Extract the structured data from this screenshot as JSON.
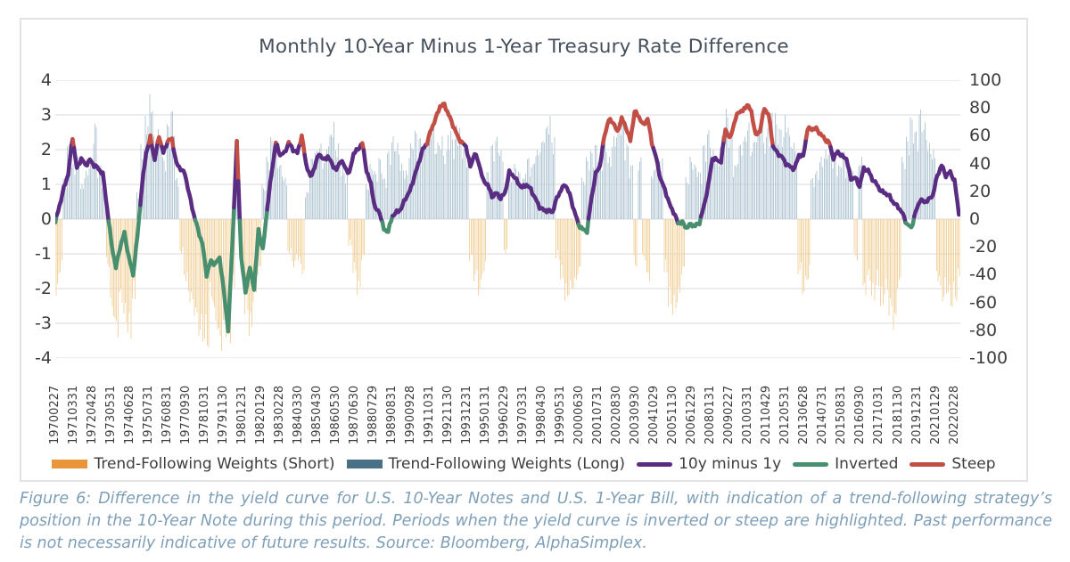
{
  "title": "Monthly 10-Year Minus 1-Year Treasury Rate Difference",
  "caption": "Figure 6: Difference in the yield curve for U.S. 10-Year Notes and U.S. 1-Year Bill, with indication of a trend-following strategy’s position in the 10-Year Note during this period. Periods when the yield curve is inverted or steep are highlighted. Past performance is not necessarily indicative of future results. Source: Bloomberg, AlphaSimplex.",
  "legend": [
    {
      "label": "Trend-Following Weights (Short)",
      "color": "#e8953b",
      "swatch": "bar"
    },
    {
      "label": "Trend-Following Weights (Long)",
      "color": "#4a7085",
      "swatch": "bar"
    },
    {
      "label": "10y minus 1y",
      "color": "#5b2d82",
      "swatch": "line"
    },
    {
      "label": "Inverted",
      "color": "#478f6e",
      "swatch": "line"
    },
    {
      "label": "Steep",
      "color": "#c24f46",
      "swatch": "line"
    }
  ],
  "colors": {
    "line": "#5b2d82",
    "inverted": "#478f6e",
    "steep": "#c24f46",
    "bar_long": "#b7cbd7",
    "bar_short": "#f3d4a6",
    "grid": "#d9d9d9",
    "axis_text": "#3d3d3d",
    "title_text": "#44505c",
    "caption_text": "#7e9fb7",
    "panel_border": "#e3e3e3"
  },
  "chart_data": {
    "type": "line+bar",
    "title": "Monthly 10-Year Minus 1-Year Treasury Rate Difference",
    "grid": "horizontal",
    "legend_position": "bottom",
    "x_start_month": "1970-02",
    "n_months": 628,
    "x_tick_every_months": 13,
    "x_tick_labels": [
      "19700227",
      "19710331",
      "19720428",
      "19730531",
      "19740628",
      "19750731",
      "19760831",
      "19770930",
      "19781031",
      "19791130",
      "19801231",
      "19820129",
      "19830228",
      "19840330",
      "19850430",
      "19860530",
      "19870630",
      "19880729",
      "19890831",
      "19900928",
      "19911031",
      "19921130",
      "19931231",
      "19950131",
      "19960229",
      "19970331",
      "19980430",
      "19990531",
      "20000630",
      "20010731",
      "20020830",
      "20030930",
      "20041029",
      "20051130",
      "20061229",
      "20080131",
      "20090227",
      "20100331",
      "20110429",
      "20120531",
      "20130628",
      "20140731",
      "20150831",
      "20160930",
      "20171031",
      "20181130",
      "20191231",
      "20210129",
      "20220228"
    ],
    "left_axis": {
      "ticks": [
        4,
        3,
        2,
        1,
        0,
        -1,
        -2,
        -3,
        -4
      ],
      "range": [
        -4,
        4
      ]
    },
    "right_axis": {
      "ticks": [
        100,
        80,
        60,
        40,
        20,
        0,
        -20,
        -40,
        -60,
        -80,
        -100
      ],
      "range": [
        -100,
        100
      ]
    },
    "series": [
      {
        "name": "10y minus 1y",
        "type": "line",
        "axis": "left",
        "sampling": "quarterly",
        "highlight_rules": {
          "inverted_below": 0,
          "steep_above": 2.15
        },
        "values": [
          -0.1,
          0.4,
          0.9,
          1.3,
          2.35,
          1.45,
          1.75,
          1.55,
          1.7,
          1.55,
          1.45,
          1.3,
          0.3,
          -0.7,
          -1.4,
          -0.8,
          -0.4,
          -1.1,
          -1.6,
          -0.5,
          0.9,
          1.9,
          2.35,
          1.7,
          2.4,
          1.9,
          2.25,
          2.3,
          1.6,
          1.45,
          1.3,
          0.7,
          0.15,
          -0.3,
          -0.7,
          -1.6,
          -1.2,
          -1.3,
          -1.1,
          -2.1,
          -3.2,
          -0.6,
          2.2,
          -1.1,
          -2.1,
          -1.4,
          -2.0,
          -0.3,
          -0.9,
          0.3,
          1.3,
          2.2,
          1.85,
          1.9,
          2.2,
          2.0,
          1.9,
          2.4,
          1.6,
          1.2,
          1.5,
          1.9,
          1.7,
          1.8,
          1.6,
          1.4,
          1.7,
          1.5,
          1.3,
          1.9,
          2.0,
          2.2,
          1.4,
          1.0,
          0.3,
          0.2,
          -0.3,
          -0.35,
          0.1,
          0.2,
          0.3,
          0.6,
          0.8,
          1.2,
          1.6,
          2.0,
          2.2,
          2.6,
          2.9,
          3.25,
          3.3,
          3.0,
          2.7,
          2.4,
          2.2,
          2.1,
          1.5,
          1.9,
          1.6,
          1.1,
          1.0,
          0.65,
          0.75,
          0.6,
          0.75,
          1.35,
          1.25,
          1.05,
          0.9,
          1.0,
          0.85,
          0.6,
          0.35,
          0.25,
          0.25,
          0.2,
          0.6,
          0.85,
          1.0,
          0.7,
          0.25,
          -0.15,
          -0.3,
          -0.35,
          0.6,
          1.3,
          1.55,
          2.4,
          2.85,
          2.8,
          2.5,
          2.9,
          2.65,
          2.25,
          3.1,
          2.95,
          2.7,
          2.9,
          2.2,
          1.75,
          1.15,
          0.85,
          0.45,
          0.2,
          -0.1,
          -0.1,
          -0.25,
          -0.15,
          -0.2,
          -0.1,
          0.35,
          0.95,
          1.75,
          1.7,
          1.65,
          2.6,
          2.3,
          2.75,
          3.1,
          3.1,
          3.3,
          3.1,
          2.4,
          2.55,
          3.2,
          3.0,
          2.1,
          1.9,
          1.8,
          1.6,
          1.5,
          1.45,
          1.85,
          1.8,
          2.6,
          2.6,
          2.6,
          2.45,
          2.3,
          2.2,
          1.75,
          1.95,
          1.8,
          1.75,
          1.15,
          1.2,
          0.95,
          1.45,
          1.4,
          1.15,
          1.0,
          0.8,
          0.75,
          0.65,
          0.45,
          0.35,
          0.15,
          -0.15,
          -0.25,
          0.2,
          0.55,
          0.5,
          0.55,
          0.7,
          1.25,
          1.55,
          1.25,
          1.35,
          1.1,
          0.15
        ]
      },
      {
        "name": "Trend-Following Weights",
        "type": "bar",
        "axis": "right",
        "sampling": "quarterly",
        "positive_label": "Long",
        "negative_label": "Short",
        "values": [
          -60,
          -40,
          30,
          55,
          40,
          45,
          25,
          35,
          45,
          70,
          40,
          30,
          -35,
          -70,
          -85,
          -60,
          -75,
          -88,
          -60,
          20,
          55,
          75,
          90,
          60,
          65,
          45,
          70,
          80,
          30,
          -25,
          -45,
          -60,
          -70,
          -85,
          -90,
          -95,
          -60,
          -80,
          -95,
          -85,
          -90,
          -50,
          40,
          -30,
          -70,
          -85,
          -60,
          -40,
          25,
          45,
          60,
          50,
          40,
          30,
          -25,
          -35,
          -30,
          -40,
          20,
          45,
          50,
          55,
          45,
          60,
          70,
          55,
          40,
          35,
          -20,
          -40,
          -55,
          -30,
          25,
          40,
          35,
          45,
          30,
          50,
          60,
          55,
          40,
          35,
          55,
          65,
          60,
          55,
          65,
          70,
          55,
          60,
          50,
          65,
          60,
          70,
          55,
          45,
          -30,
          -45,
          -55,
          -40,
          35,
          55,
          60,
          50,
          -25,
          30,
          40,
          35,
          30,
          45,
          40,
          50,
          55,
          65,
          75,
          60,
          -30,
          -45,
          -60,
          -55,
          -50,
          -40,
          30,
          45,
          50,
          55,
          45,
          60,
          45,
          60,
          70,
          75,
          55,
          40,
          -35,
          45,
          -30,
          -45,
          35,
          40,
          45,
          -40,
          -65,
          -70,
          -60,
          -40,
          30,
          45,
          40,
          35,
          55,
          65,
          50,
          45,
          60,
          80,
          65,
          40,
          55,
          60,
          70,
          55,
          65,
          75,
          60,
          70,
          80,
          70,
          65,
          75,
          60,
          55,
          -40,
          -55,
          -45,
          30,
          35,
          45,
          50,
          55,
          45,
          40,
          50,
          40,
          35,
          -30,
          45,
          -55,
          -45,
          -60,
          -50,
          -65,
          -55,
          -70,
          -80,
          -50,
          45,
          60,
          75,
          65,
          80,
          70,
          55,
          50,
          -45,
          -60,
          -55,
          -65,
          -60,
          -45
        ]
      }
    ]
  }
}
